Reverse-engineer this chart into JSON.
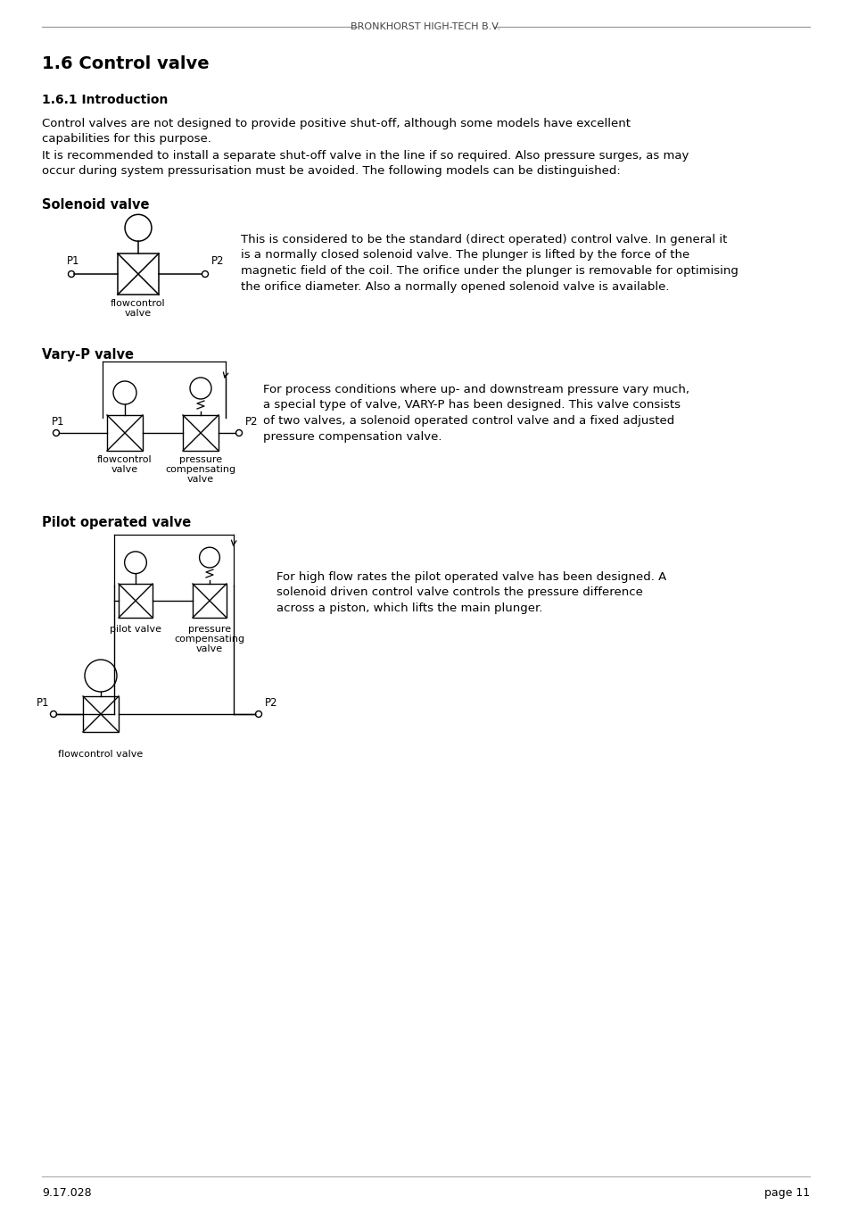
{
  "header_text": "BRONKHORST HIGH-TECH B.V.",
  "section_title": "1.6 Control valve",
  "subsection_title": "1.6.1 Introduction",
  "intro_text1": "Control valves are not designed to provide positive shut-off, although some models have excellent\ncapabilities for this purpose.",
  "intro_text2": "It is recommended to install a separate shut-off valve in the line if so required. Also pressure surges, as may\noccur during system pressurisation must be avoided. The following models can be distinguished:",
  "solenoid_title": "Solenoid valve",
  "solenoid_desc": "This is considered to be the standard (direct operated) control valve. In general it\nis a normally closed solenoid valve. The plunger is lifted by the force of the\nmagnetic field of the coil. The orifice under the plunger is removable for optimising\nthe orifice diameter. Also a normally opened solenoid valve is available.",
  "varyp_title": "Vary-P valve",
  "varyp_desc": "For process conditions where up- and downstream pressure vary much,\na special type of valve, VARY-P has been designed. This valve consists\nof two valves, a solenoid operated control valve and a fixed adjusted\npressure compensation valve.",
  "pilot_title": "Pilot operated valve",
  "pilot_desc": "For high flow rates the pilot operated valve has been designed. A\nsolenoid driven control valve controls the pressure difference\nacross a piston, which lifts the main plunger.",
  "footer_left": "9.17.028",
  "footer_right": "page 11",
  "bg_color": "#ffffff",
  "text_color": "#000000"
}
